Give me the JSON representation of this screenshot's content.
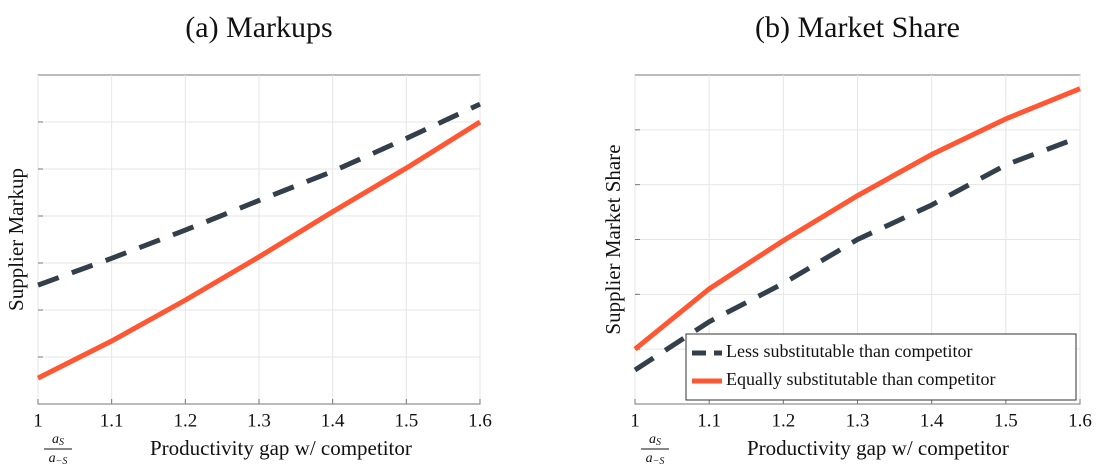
{
  "chart_data": [
    {
      "type": "line",
      "title": "(a) Markups",
      "ylabel": "Supplier Markup",
      "xlabel": "Productivity gap w/ competitor",
      "x_var": {
        "numerator": "a",
        "numerator_sub": "S",
        "denominator": "a",
        "denominator_sub": "−S"
      },
      "x": [
        1,
        1.1,
        1.2,
        1.3,
        1.4,
        1.5,
        1.6
      ],
      "xlim": [
        1,
        1.6
      ],
      "xticks": [
        1,
        1.1,
        1.2,
        1.3,
        1.4,
        1.5,
        1.6
      ],
      "ylim": [
        0,
        7
      ],
      "yticks": [
        1,
        2,
        3,
        4,
        5,
        6
      ],
      "ytick_labels": false,
      "grid": true,
      "series": [
        {
          "color": "#333f4b",
          "style": "dashed",
          "values": [
            2.53,
            3.1,
            3.7,
            4.33,
            4.95,
            5.65,
            6.38
          ]
        },
        {
          "color": "#ff5733",
          "style": "solid",
          "values": [
            0.55,
            1.34,
            2.21,
            3.13,
            4.09,
            5.02,
            6.0
          ]
        }
      ]
    },
    {
      "type": "line",
      "title": "(b) Market Share",
      "ylabel": "Supplier Market Share",
      "xlabel": "Productivity gap w/ competitor",
      "x_var": {
        "numerator": "a",
        "numerator_sub": "S",
        "denominator": "a",
        "denominator_sub": "−S"
      },
      "x": [
        1,
        1.1,
        1.2,
        1.3,
        1.4,
        1.5,
        1.6
      ],
      "xlim": [
        1,
        1.6
      ],
      "xticks": [
        1,
        1.1,
        1.2,
        1.3,
        1.4,
        1.5,
        1.6
      ],
      "ylim": [
        0,
        6
      ],
      "yticks": [
        1,
        2,
        3,
        4,
        5
      ],
      "ytick_labels": false,
      "grid": true,
      "legend": "lower right",
      "series": [
        {
          "name": "Less substitutable than competitor",
          "color": "#333f4b",
          "style": "dashed",
          "values": [
            0.62,
            1.5,
            2.2,
            3.0,
            3.63,
            4.36,
            4.87
          ]
        },
        {
          "name": "Equally substitutable than competitor",
          "color": "#ff5733",
          "style": "solid",
          "values": [
            1.0,
            2.1,
            2.98,
            3.8,
            4.55,
            5.2,
            5.75
          ]
        }
      ]
    }
  ]
}
